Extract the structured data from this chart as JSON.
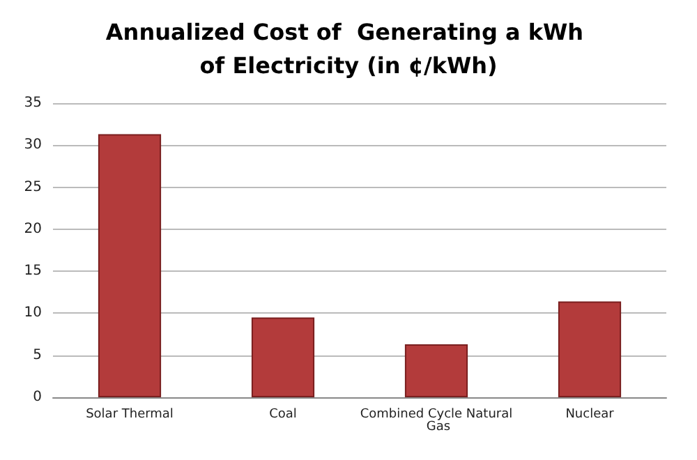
{
  "chart_data": {
    "type": "bar",
    "title": "Annualized Cost of  Generating a kWh of Electricity (in ¢/kWh)",
    "categories": [
      "Solar Thermal",
      "Coal",
      "Combined Cycle Natural Gas",
      "Nuclear"
    ],
    "values": [
      31.3,
      9.5,
      6.3,
      11.4
    ],
    "color": "#b33b3b",
    "ylim": [
      0,
      35
    ],
    "yticks": [
      0,
      5,
      10,
      15,
      20,
      25,
      30,
      35
    ],
    "grid": "y"
  }
}
